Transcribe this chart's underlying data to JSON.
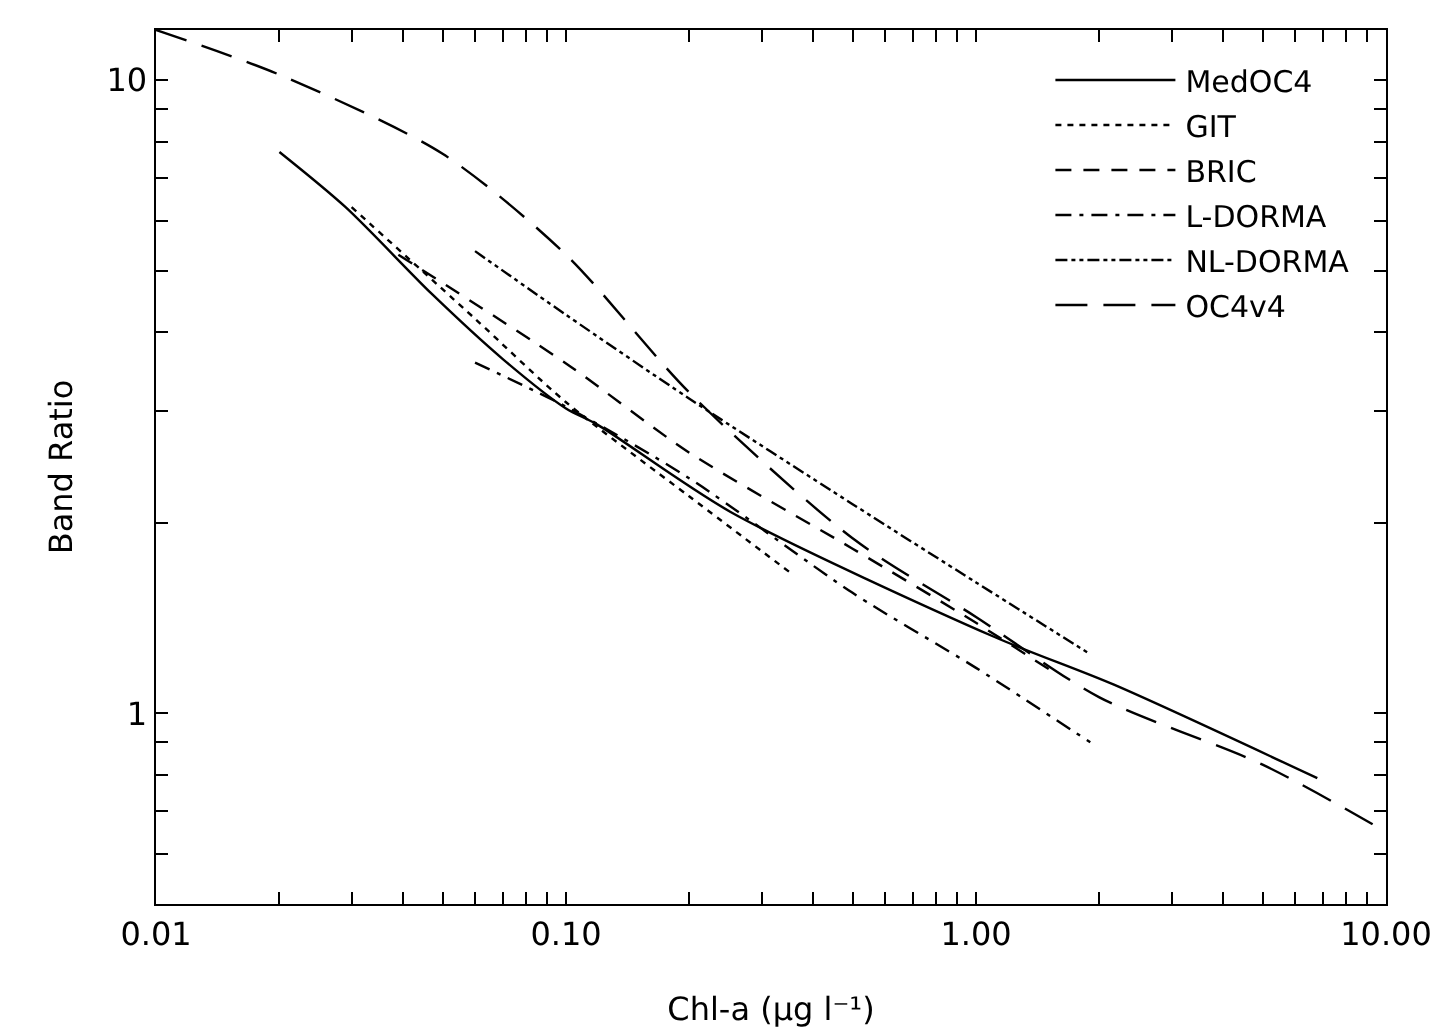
{
  "chart_data": {
    "type": "line",
    "xlabel": "Chl-a (μg l⁻¹)",
    "ylabel": "Band Ratio",
    "log": "xy",
    "grid": false,
    "legend": "top right",
    "marker": "none",
    "xlim": [
      0.01,
      10
    ],
    "xticks": [
      {
        "value": 0.01,
        "label": "0.01"
      },
      {
        "value": 0.1,
        "label": "0.10"
      },
      {
        "value": 1,
        "label": "1.00"
      },
      {
        "value": 10,
        "label": "10.00"
      },
      {
        "value": 0.02,
        "label": null
      },
      {
        "value": 0.03,
        "label": null
      },
      {
        "value": 0.04,
        "label": null
      },
      {
        "value": 0.05,
        "label": null
      },
      {
        "value": 0.06,
        "label": null
      },
      {
        "value": 0.07,
        "label": null
      },
      {
        "value": 0.08,
        "label": null
      },
      {
        "value": 0.09,
        "label": null
      },
      {
        "value": 0.2,
        "label": null
      },
      {
        "value": 0.3,
        "label": null
      },
      {
        "value": 0.4,
        "label": null
      },
      {
        "value": 0.5,
        "label": null
      },
      {
        "value": 0.6,
        "label": null
      },
      {
        "value": 0.7,
        "label": null
      },
      {
        "value": 0.8,
        "label": null
      },
      {
        "value": 0.9,
        "label": null
      },
      {
        "value": 2,
        "label": null
      },
      {
        "value": 3,
        "label": null
      },
      {
        "value": 4,
        "label": null
      },
      {
        "value": 5,
        "label": null
      },
      {
        "value": 6,
        "label": null
      },
      {
        "value": 7,
        "label": null
      },
      {
        "value": 8,
        "label": null
      },
      {
        "value": 9,
        "label": null
      }
    ],
    "ylim": [
      0.5,
      12
    ],
    "yticks": [
      1,
      10,
      {
        "value": 0.6,
        "label": null
      },
      {
        "value": 0.7,
        "label": null
      },
      {
        "value": 0.8,
        "label": null
      },
      {
        "value": 0.9,
        "label": null
      },
      {
        "value": 2,
        "label": null
      },
      {
        "value": 3,
        "label": null
      },
      {
        "value": 4,
        "label": null
      },
      {
        "value": 5,
        "label": null
      },
      {
        "value": 6,
        "label": null
      },
      {
        "value": 7,
        "label": null
      },
      {
        "value": 8,
        "label": null
      },
      {
        "value": 9,
        "label": null
      }
    ],
    "series": [
      {
        "name": "MedOC4",
        "color": "#000000",
        "line_style": "solid",
        "x": [
          0.02,
          0.029,
          0.047,
          0.07,
          0.1,
          0.119,
          0.252,
          1.11,
          2.17,
          6.8
        ],
        "values": [
          7.7,
          6.3,
          4.6,
          3.63,
          3.03,
          2.86,
          2.08,
          1.32,
          1.11,
          0.79
        ]
      },
      {
        "name": "GIT",
        "color": "#000000",
        "line_style": "dotted",
        "x": [
          0.03,
          0.06,
          0.1,
          0.2,
          0.356
        ],
        "values": [
          6.3,
          4.2,
          3.1,
          2.2,
          1.66
        ]
      },
      {
        "name": "BRIC",
        "color": "#000000",
        "line_style": "dashed",
        "x": [
          0.039,
          0.1,
          0.2,
          0.5,
          1,
          1.55
        ],
        "values": [
          5.3,
          3.57,
          2.58,
          1.82,
          1.39,
          1.16
        ]
      },
      {
        "name": "L-DORMA",
        "color": "#000000",
        "line_style": "dashdot",
        "x": [
          0.06,
          0.1,
          0.2,
          0.5,
          1,
          1.9
        ],
        "values": [
          3.58,
          3.05,
          2.35,
          1.55,
          1.18,
          0.9
        ]
      },
      {
        "name": "NL-DORMA",
        "color": "#000000",
        "line_style": "dashdotdot",
        "x": [
          0.06,
          0.1,
          0.2,
          0.5,
          1,
          1.9
        ],
        "values": [
          5.37,
          4.26,
          3.14,
          2.14,
          1.61,
          1.24
        ]
      },
      {
        "name": "OC4v4",
        "color": "#000000",
        "line_style": "longdash",
        "x": [
          0.01,
          0.02,
          0.05,
          0.1,
          0.2,
          0.5,
          1,
          2,
          5,
          10
        ],
        "values": [
          12,
          10.2,
          7.65,
          5.3,
          3.21,
          1.89,
          1.42,
          1.06,
          0.83,
          0.65
        ]
      }
    ]
  }
}
